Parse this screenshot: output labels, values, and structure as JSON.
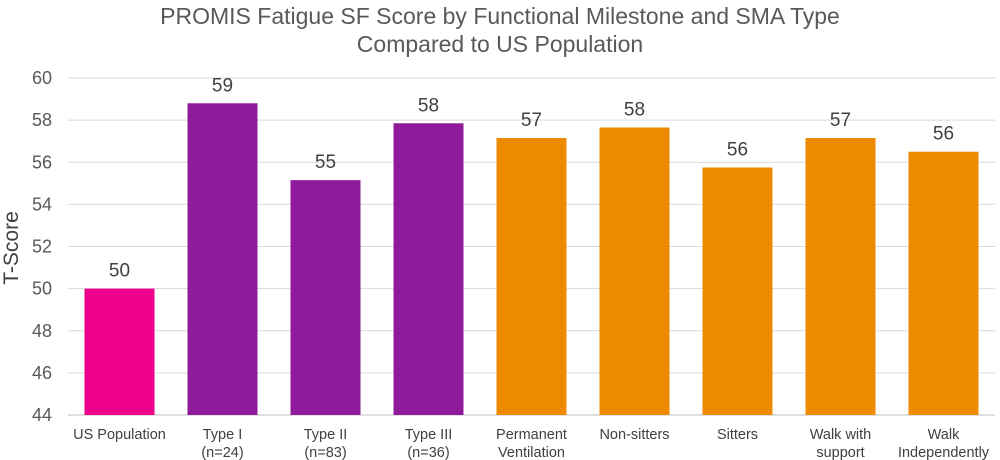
{
  "chart_data": {
    "type": "bar",
    "title_lines": [
      "PROMIS Fatigue SF Score by Functional Milestone and SMA Type",
      "Compared to US Population"
    ],
    "ylabel": "T-Score",
    "xlabel": "",
    "ylim": [
      44,
      60
    ],
    "yticks": [
      44,
      46,
      48,
      50,
      52,
      54,
      56,
      58,
      60
    ],
    "grid": true,
    "categories": [
      [
        "US Population"
      ],
      [
        "Type I",
        "(n=24)"
      ],
      [
        "Type II",
        "(n=83)"
      ],
      [
        "Type III",
        "(n=36)"
      ],
      [
        "Permanent",
        "Ventilation"
      ],
      [
        "Non-sitters"
      ],
      [
        "Sitters"
      ],
      [
        "Walk with",
        "support"
      ],
      [
        "Walk",
        "Independently"
      ]
    ],
    "values": [
      50,
      58.8,
      55.15,
      57.85,
      57.15,
      57.65,
      55.75,
      57.15,
      56.5
    ],
    "data_labels": [
      "50",
      "59",
      "55",
      "58",
      "57",
      "58",
      "56",
      "57",
      "56"
    ],
    "colors": [
      "#ec008c",
      "#8f1b9b",
      "#8f1b9b",
      "#8f1b9b",
      "#ee8a00",
      "#ee8a00",
      "#ee8a00",
      "#ee8a00",
      "#ee8a00"
    ]
  }
}
